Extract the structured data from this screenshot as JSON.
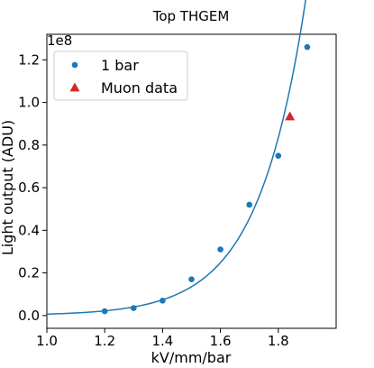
{
  "chart_data": {
    "type": "scatter",
    "title": "Top THGEM",
    "xlabel": "kV/mm/bar",
    "ylabel": "Light output (ADU)",
    "y_multiplier_label": "1e8",
    "xlim": [
      1.0,
      2.0
    ],
    "ylim": [
      -0.06,
      1.32
    ],
    "x_ticks": [
      1.0,
      1.2,
      1.4,
      1.6,
      1.8
    ],
    "x_tick_labels": [
      "1.0",
      "1.2",
      "1.4",
      "1.6",
      "1.8"
    ],
    "y_ticks": [
      0.0,
      0.2,
      0.4,
      0.6,
      0.8,
      1.0,
      1.2
    ],
    "y_tick_labels": [
      "0.0",
      "0.2",
      "0.4",
      "0.6",
      "0.8",
      "1.0",
      "1.2"
    ],
    "grid": false,
    "legend_position": "upper-left",
    "series": [
      {
        "name": "1 bar",
        "marker": "circle",
        "color": "#1f77b4",
        "x": [
          1.2,
          1.3,
          1.4,
          1.5,
          1.6,
          1.7,
          1.8,
          1.9
        ],
        "y": [
          0.02,
          0.035,
          0.07,
          0.17,
          0.31,
          0.52,
          0.75,
          1.26
        ]
      },
      {
        "name": "Muon data",
        "marker": "triangle",
        "color": "#d62728",
        "x": [
          1.84
        ],
        "y": [
          0.935
        ]
      }
    ],
    "fit_curve": {
      "type": "exponential",
      "color": "#1f77b4",
      "x_range": [
        1.0,
        1.9
      ]
    }
  }
}
